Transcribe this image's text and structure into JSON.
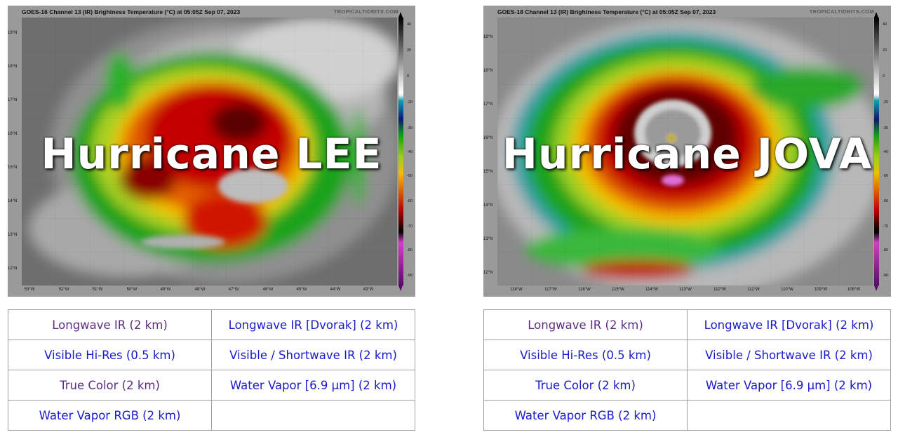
{
  "panels": [
    {
      "satellite_title": "GOES-16 Channel 13 (IR) Brightness Temperature (°C) at 05:05Z Sep 07, 2023",
      "source": "TROPICALTIDBITS.COM",
      "overlay": "Hurricane LEE",
      "lat_labels": [
        "19°N",
        "18°N",
        "17°N",
        "16°N",
        "15°N",
        "14°N",
        "13°N",
        "12°N"
      ],
      "lon_labels": [
        "53°W",
        "52°W",
        "51°W",
        "50°W",
        "49°W",
        "48°W",
        "47°W",
        "46°W",
        "45°W",
        "44°W",
        "43°W"
      ],
      "colorbar_ticks": [
        "40",
        "20",
        "0",
        "-20",
        "-30",
        "-40",
        "-50",
        "-60",
        "-70",
        "-80",
        "-90"
      ],
      "links": [
        {
          "label": "Longwave IR (2 km)",
          "visited": true
        },
        {
          "label": "Longwave IR [Dvorak] (2 km)",
          "visited": false
        },
        {
          "label": "Visible Hi-Res (0.5 km)",
          "visited": false
        },
        {
          "label": "Visible / Shortwave IR (2 km)",
          "visited": false
        },
        {
          "label": "True Color (2 km)",
          "visited": true
        },
        {
          "label": "Water Vapor [6.9 μm] (2 km)",
          "visited": false
        },
        {
          "label": "Water Vapor RGB (2 km)",
          "visited": false
        }
      ]
    },
    {
      "satellite_title": "GOES-18 Channel 13 (IR) Brightness Temperature (°C) at 05:05Z Sep 07, 2023",
      "source": "TROPICALTIDBITS.COM",
      "overlay": "Hurricane JOVA",
      "lat_labels": [
        "19°N",
        "18°N",
        "17°N",
        "16°N",
        "15°N",
        "14°N",
        "13°N",
        "12°N"
      ],
      "lon_labels": [
        "118°W",
        "117°W",
        "116°W",
        "115°W",
        "114°W",
        "113°W",
        "112°W",
        "111°W",
        "110°W",
        "109°W",
        "108°W"
      ],
      "colorbar_ticks": [
        "40",
        "20",
        "0",
        "-20",
        "-30",
        "-40",
        "-50",
        "-60",
        "-70",
        "-80",
        "-90"
      ],
      "links": [
        {
          "label": "Longwave IR (2 km)",
          "visited": true
        },
        {
          "label": "Longwave IR [Dvorak] (2 km)",
          "visited": false
        },
        {
          "label": "Visible Hi-Res (0.5 km)",
          "visited": false
        },
        {
          "label": "Visible / Shortwave IR (2 km)",
          "visited": false
        },
        {
          "label": "True Color (2 km)",
          "visited": false
        },
        {
          "label": "Water Vapor [6.9 μm] (2 km)",
          "visited": false
        },
        {
          "label": "Water Vapor RGB (2 km)",
          "visited": false
        }
      ]
    }
  ],
  "colors": {
    "link": "#1a1acc",
    "visited_link": "#5c2d80",
    "table_border": "#a0a0a0"
  }
}
